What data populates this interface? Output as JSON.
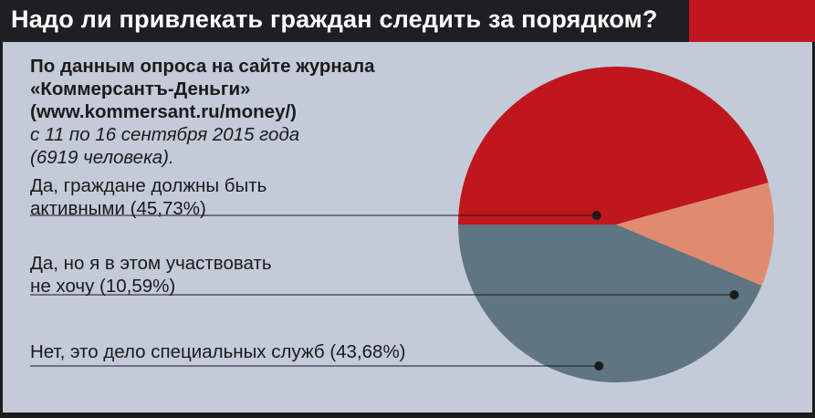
{
  "title": "Надо ли привлекать граждан следить за порядком?",
  "source": {
    "line1": "По данным опроса на сайте журнала",
    "line2": "«Коммерсантъ-Деньги»",
    "line3": "(www.kommersant.ru/money/)",
    "line4": "с 11 по 16 сентября 2015 года",
    "line5": "(6919 человека)."
  },
  "answers": [
    {
      "line1": "Да, граждане должны быть",
      "line2": "активными (45,73%)"
    },
    {
      "line1": "Да, но я в этом участвовать",
      "line2": "не хочу (10,59%)"
    },
    {
      "line1": "Нет, это дело специальных служб (43,68%)"
    }
  ],
  "colors": {
    "header_bg": "#1e1f22",
    "accent": "#c0161e",
    "background": "#c3cad8",
    "slice_yes": "#c0161e",
    "slice_yes_but": "#e08a70",
    "slice_no": "#5f7582"
  },
  "chart_data": {
    "type": "pie",
    "categories": [
      "Да, граждане должны быть активными",
      "Да, но я в этом участвовать не хочу",
      "Нет, это дело специальных служб"
    ],
    "values": [
      45.73,
      10.59,
      43.68
    ],
    "unit": "%",
    "colors": [
      "#c0161e",
      "#e08a70",
      "#5f7582"
    ]
  }
}
